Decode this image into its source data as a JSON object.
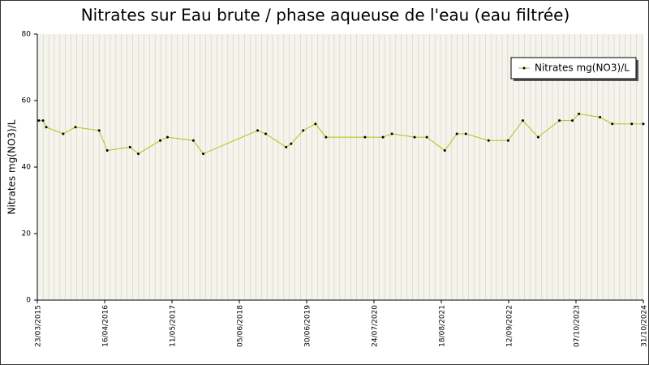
{
  "chart_data": {
    "type": "line",
    "title": "Nitrates sur Eau brute / phase aqueuse de l'eau (eau filtrée)",
    "y_label": "Nitrates mg(NO3)/L",
    "x": [
      "01/04/2015",
      "25/04/2015",
      "14/05/2015",
      "20/08/2015",
      "30/10/2015",
      "15/03/2016",
      "01/05/2016",
      "10/09/2016",
      "28/10/2016",
      "04/03/2017",
      "15/04/2017",
      "12/09/2017",
      "08/11/2017",
      "19/09/2018",
      "05/11/2018",
      "03/03/2019",
      "01/04/2019",
      "10/06/2019",
      "20/08/2019",
      "20/10/2019",
      "02/06/2020",
      "14/09/2020",
      "05/11/2020",
      "16/03/2021",
      "26/05/2021",
      "07/09/2021",
      "16/11/2021",
      "07/01/2022",
      "19/05/2022",
      "09/09/2022",
      "03/12/2022",
      "02/03/2023",
      "03/07/2023",
      "16/09/2023",
      "24/10/2023",
      "23/02/2024",
      "04/05/2024",
      "25/08/2024",
      "31/10/2024"
    ],
    "series": [
      {
        "name": "Nitrates mg(NO3)/L",
        "color": "#a8c80a",
        "values": [
          54,
          54,
          52,
          50,
          52,
          51,
          45,
          46,
          44,
          48,
          49,
          48,
          44,
          51,
          50,
          46,
          47,
          51,
          53,
          49,
          49,
          49,
          50,
          49,
          49,
          45,
          50,
          50,
          48,
          48,
          54,
          49,
          54,
          54,
          56,
          55,
          53,
          53,
          53
        ]
      }
    ],
    "xlim": [
      "23/03/2015",
      "31/10/2024"
    ],
    "xticks": [
      "23/03/2015",
      "16/04/2016",
      "11/05/2017",
      "05/06/2018",
      "30/06/2019",
      "24/07/2020",
      "18/08/2021",
      "12/09/2022",
      "07/10/2023",
      "31/10/2024"
    ],
    "ylim": [
      0,
      80
    ],
    "yticks": [
      0,
      20,
      40,
      60,
      80
    ],
    "legend": "top-right",
    "marker_color": "#000000"
  }
}
